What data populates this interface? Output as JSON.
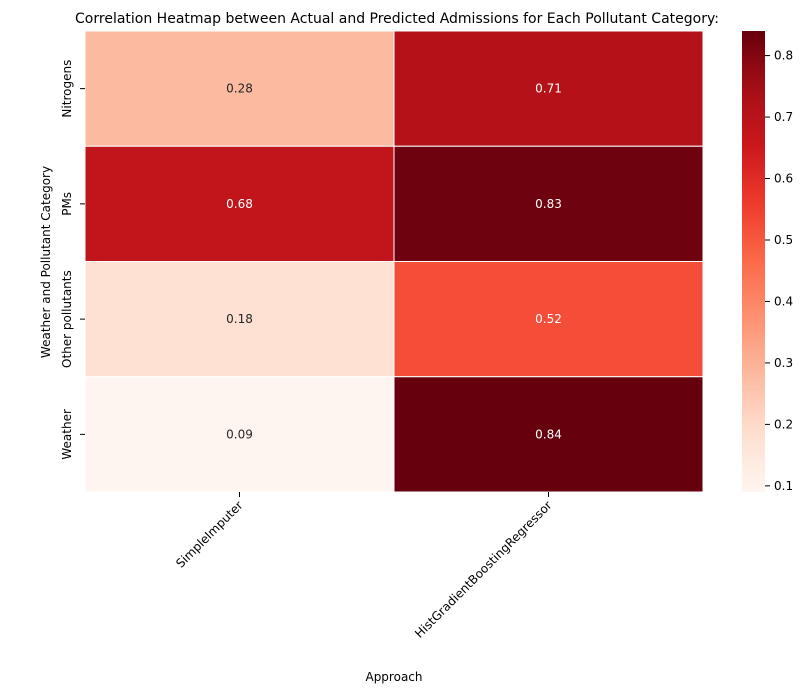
{
  "chart_data": {
    "type": "heatmap",
    "title": "Correlation Heatmap between Actual and Predicted Admissions for Each Pollutant Category:",
    "xlabel": "Approach",
    "ylabel": "Weather and Pollutant Category",
    "x_categories": [
      "SimpleImputer",
      "HistGradientBoostingRegressor"
    ],
    "y_categories": [
      "Nitrogens",
      "PMs",
      "Other pollutants",
      "Weather"
    ],
    "values": [
      [
        0.28,
        0.71
      ],
      [
        0.68,
        0.83
      ],
      [
        0.18,
        0.52
      ],
      [
        0.09,
        0.84
      ]
    ],
    "value_labels": [
      [
        "0.28",
        "0.71"
      ],
      [
        "0.68",
        "0.83"
      ],
      [
        "0.18",
        "0.52"
      ],
      [
        "0.09",
        "0.84"
      ]
    ],
    "colormap": "Reds",
    "colorbar": {
      "range": [
        0.09,
        0.84
      ],
      "ticks": [
        0.1,
        0.2,
        0.3,
        0.4,
        0.5,
        0.6,
        0.7,
        0.8
      ],
      "tick_labels": [
        "0.1",
        "0.2",
        "0.3",
        "0.4",
        "0.5",
        "0.6",
        "0.7",
        "0.8"
      ]
    },
    "grid": false,
    "annotations": true
  }
}
